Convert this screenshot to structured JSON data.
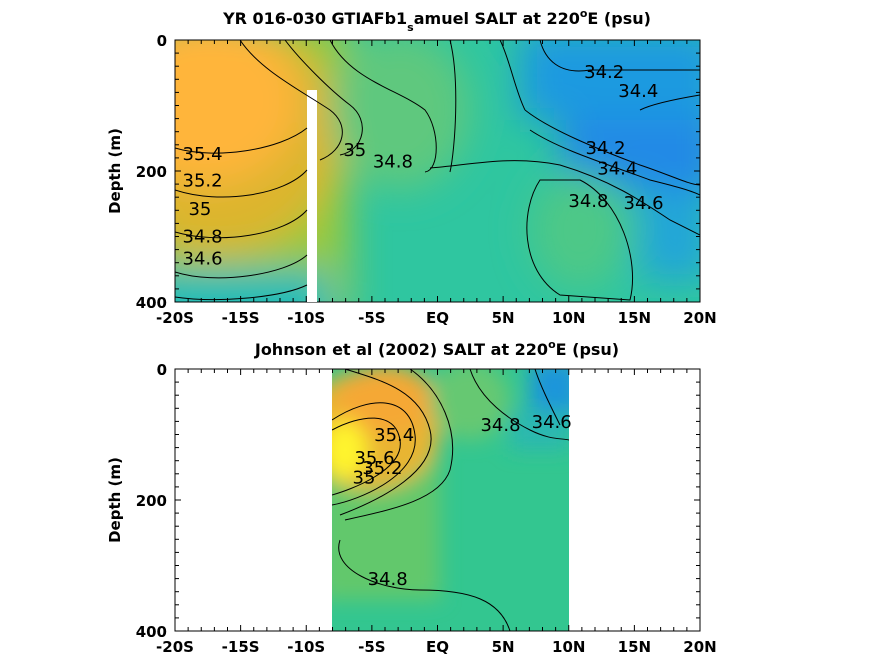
{
  "chart_data": [
    {
      "type": "heatmap",
      "title": "YR 016-030 GTIAFb1_samuel SALT at 220°E (psu)",
      "title_parts": {
        "pre": "YR 016-030 GTIAFb1",
        "sub": "s",
        "mid": "amuel SALT at 220",
        "sup": "o",
        "post": "E (psu)"
      },
      "ylabel": "Depth (m)",
      "xlim": [
        -20,
        20
      ],
      "ylim": [
        0,
        400
      ],
      "y_reversed": true,
      "xticks": [
        -20,
        -15,
        -10,
        -5,
        0,
        5,
        10,
        15,
        20
      ],
      "xtick_labels": [
        "-20S",
        "-15S",
        "-10S",
        "-5S",
        "EQ",
        "5N",
        "10N",
        "15N",
        "20N"
      ],
      "yticks": [
        0,
        200,
        400
      ],
      "ytick_labels": [
        "0",
        "200",
        "400"
      ],
      "contour_labels": [
        {
          "text": "35.4",
          "x": -17.9,
          "y": 183
        },
        {
          "text": "35.2",
          "x": -17.9,
          "y": 224
        },
        {
          "text": "35",
          "x": -18.1,
          "y": 267
        },
        {
          "text": "34.8",
          "x": -17.9,
          "y": 309
        },
        {
          "text": "34.6",
          "x": -17.9,
          "y": 343
        },
        {
          "text": "35",
          "x": -6.3,
          "y": 177
        },
        {
          "text": "34.8",
          "x": -3.4,
          "y": 195
        },
        {
          "text": "34.2",
          "x": 12.7,
          "y": 58
        },
        {
          "text": "34.4",
          "x": 15.3,
          "y": 87
        },
        {
          "text": "34.2",
          "x": 12.8,
          "y": 174
        },
        {
          "text": "34.4",
          "x": 13.7,
          "y": 205
        },
        {
          "text": "34.6",
          "x": 15.7,
          "y": 258
        },
        {
          "text": "34.8",
          "x": 11.5,
          "y": 255
        }
      ]
    },
    {
      "type": "heatmap",
      "title": "Johnson et al (2002) SALT at 220°E (psu)",
      "title_parts": {
        "pre": "Johnson et al (2002) SALT at 220",
        "sup": "o",
        "post": "E (psu)"
      },
      "ylabel": "Depth (m)",
      "xlim": [
        -20,
        20
      ],
      "ylim": [
        0,
        400
      ],
      "y_reversed": true,
      "data_extent_lon": [
        -8,
        10
      ],
      "xticks": [
        -20,
        -15,
        -10,
        -5,
        0,
        5,
        10,
        15,
        20
      ],
      "xtick_labels": [
        "-20S",
        "-15S",
        "-10S",
        "-5S",
        "EQ",
        "5N",
        "10N",
        "15N",
        "20N"
      ],
      "yticks": [
        0,
        200,
        400
      ],
      "ytick_labels": [
        "0",
        "200",
        "400"
      ],
      "contour_labels": [
        {
          "text": "35.6",
          "x": -4.8,
          "y": 145
        },
        {
          "text": "35.4",
          "x": -3.3,
          "y": 110
        },
        {
          "text": "35.2",
          "x": -4.2,
          "y": 160
        },
        {
          "text": "35",
          "x": -5.6,
          "y": 175
        },
        {
          "text": "34.8",
          "x": 4.8,
          "y": 95
        },
        {
          "text": "34.6",
          "x": 8.7,
          "y": 90
        },
        {
          "text": "34.8",
          "x": -3.8,
          "y": 330
        }
      ]
    }
  ]
}
